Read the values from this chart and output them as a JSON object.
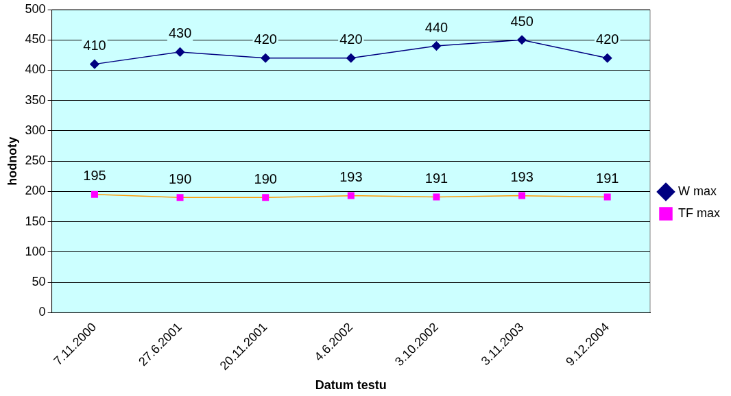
{
  "chart_data": {
    "type": "line",
    "xlabel": "Datum testu",
    "ylabel": "hodnoty",
    "categories": [
      "7.11.2000",
      "27.6.2001",
      "20.11.2001",
      "4.6.2002",
      "3.10.2002",
      "3.11.2003",
      "9.12.2004"
    ],
    "series": [
      {
        "name": "W max",
        "color": "#000080",
        "marker": "diamond",
        "values": [
          410,
          430,
          420,
          420,
          440,
          450,
          420
        ]
      },
      {
        "name": "TF max",
        "color": "#ff9900",
        "colors": [
          "#ff00ff",
          "#ff00ff",
          "#ff00ff",
          "#ff00ff",
          "#ff00ff",
          "#ff00ff",
          "#ff00ff"
        ],
        "marker": "square",
        "values": [
          195,
          190,
          190,
          193,
          191,
          193,
          191
        ]
      }
    ],
    "ylim": [
      0,
      500
    ],
    "yticks": [
      0,
      50,
      100,
      150,
      200,
      250,
      300,
      350,
      400,
      450,
      500
    ],
    "grid": "y",
    "legend": "right",
    "data_labels": true,
    "line_style": "solid"
  }
}
